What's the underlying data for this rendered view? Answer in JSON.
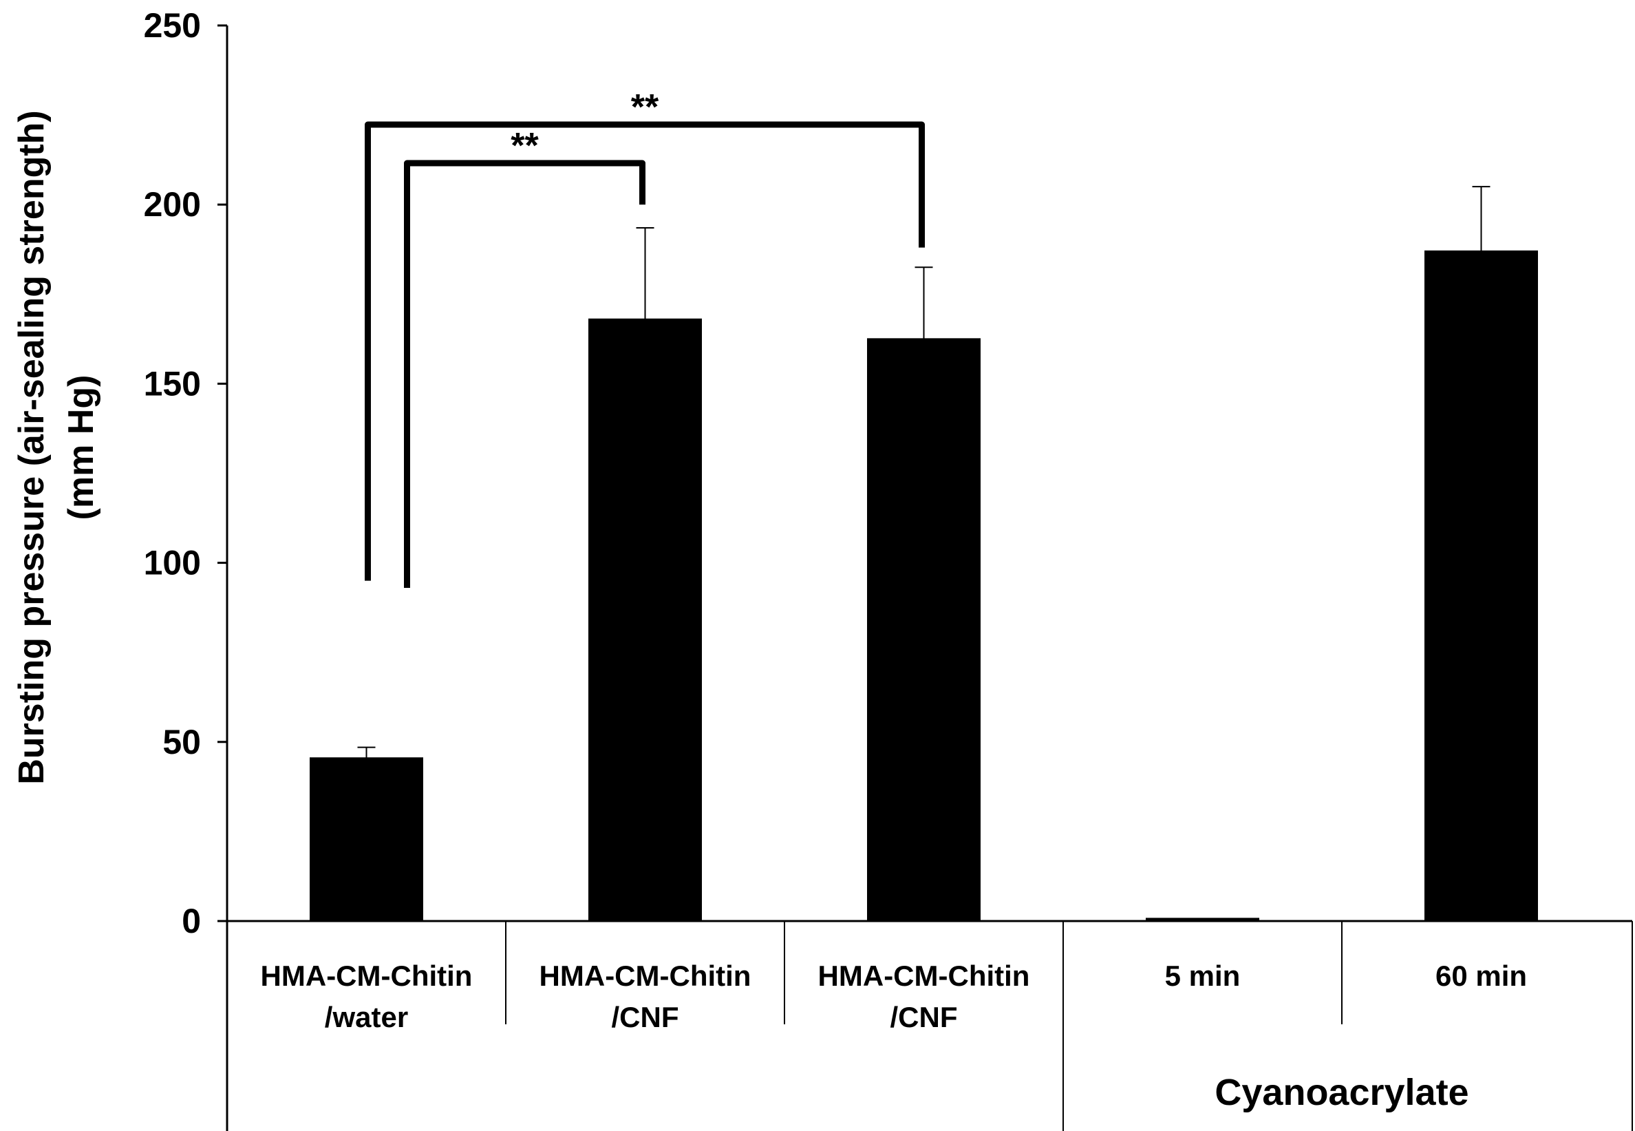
{
  "chart_data": {
    "type": "bar",
    "ylabel_line1": "Bursting pressure (air-sealing strength)",
    "ylabel_line2": "(mm Hg)",
    "ylim": [
      0,
      250
    ],
    "yticks": [
      0,
      50,
      100,
      150,
      200,
      250
    ],
    "grid": false,
    "bar_color": "#000000",
    "categories": [
      [
        "HMA-CM-Chitin",
        "/water"
      ],
      [
        "HMA-CM-Chitin",
        "/CNF"
      ],
      [
        "HMA-CM-Chitin",
        "/CNF"
      ],
      [
        "5 min"
      ],
      [
        "60 min"
      ]
    ],
    "values": [
      45.5,
      168,
      162.5,
      0.7,
      187
    ],
    "errors": [
      3,
      25.5,
      20,
      0,
      18
    ],
    "group_label": "Cyanoacrylate",
    "group_members": [
      3,
      4
    ],
    "significance": [
      {
        "from": 0,
        "to": 1,
        "label": "**"
      },
      {
        "from": 0,
        "to": 2,
        "label": "**"
      }
    ]
  }
}
